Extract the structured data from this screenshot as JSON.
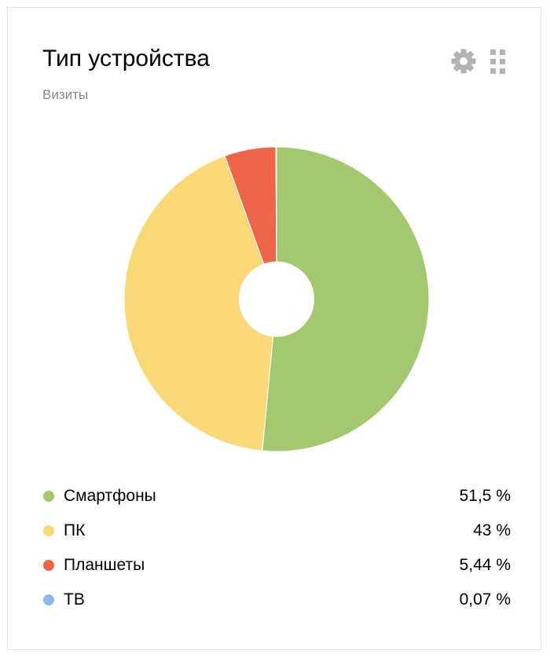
{
  "widget": {
    "title": "Тип устройства",
    "subtitle": "Визиты",
    "toolbar": {
      "settings_icon": "gear-icon",
      "drag_icon": "grip-dots-icon",
      "icon_color": "#b3b3b3"
    }
  },
  "chart_data": {
    "type": "pie",
    "donut": true,
    "series": [
      {
        "name": "Смартфоны",
        "value": 51.5,
        "label": "51,5 %",
        "color": "#a3c86f"
      },
      {
        "name": "ПК",
        "value": 43,
        "label": "43 %",
        "color": "#f9d87a"
      },
      {
        "name": "Планшеты",
        "value": 5.44,
        "label": "5,44 %",
        "color": "#ec6548"
      },
      {
        "name": "ТВ",
        "value": 0.07,
        "label": "0,07 %",
        "color": "#8bb8e8"
      }
    ],
    "legend": "bottom"
  }
}
